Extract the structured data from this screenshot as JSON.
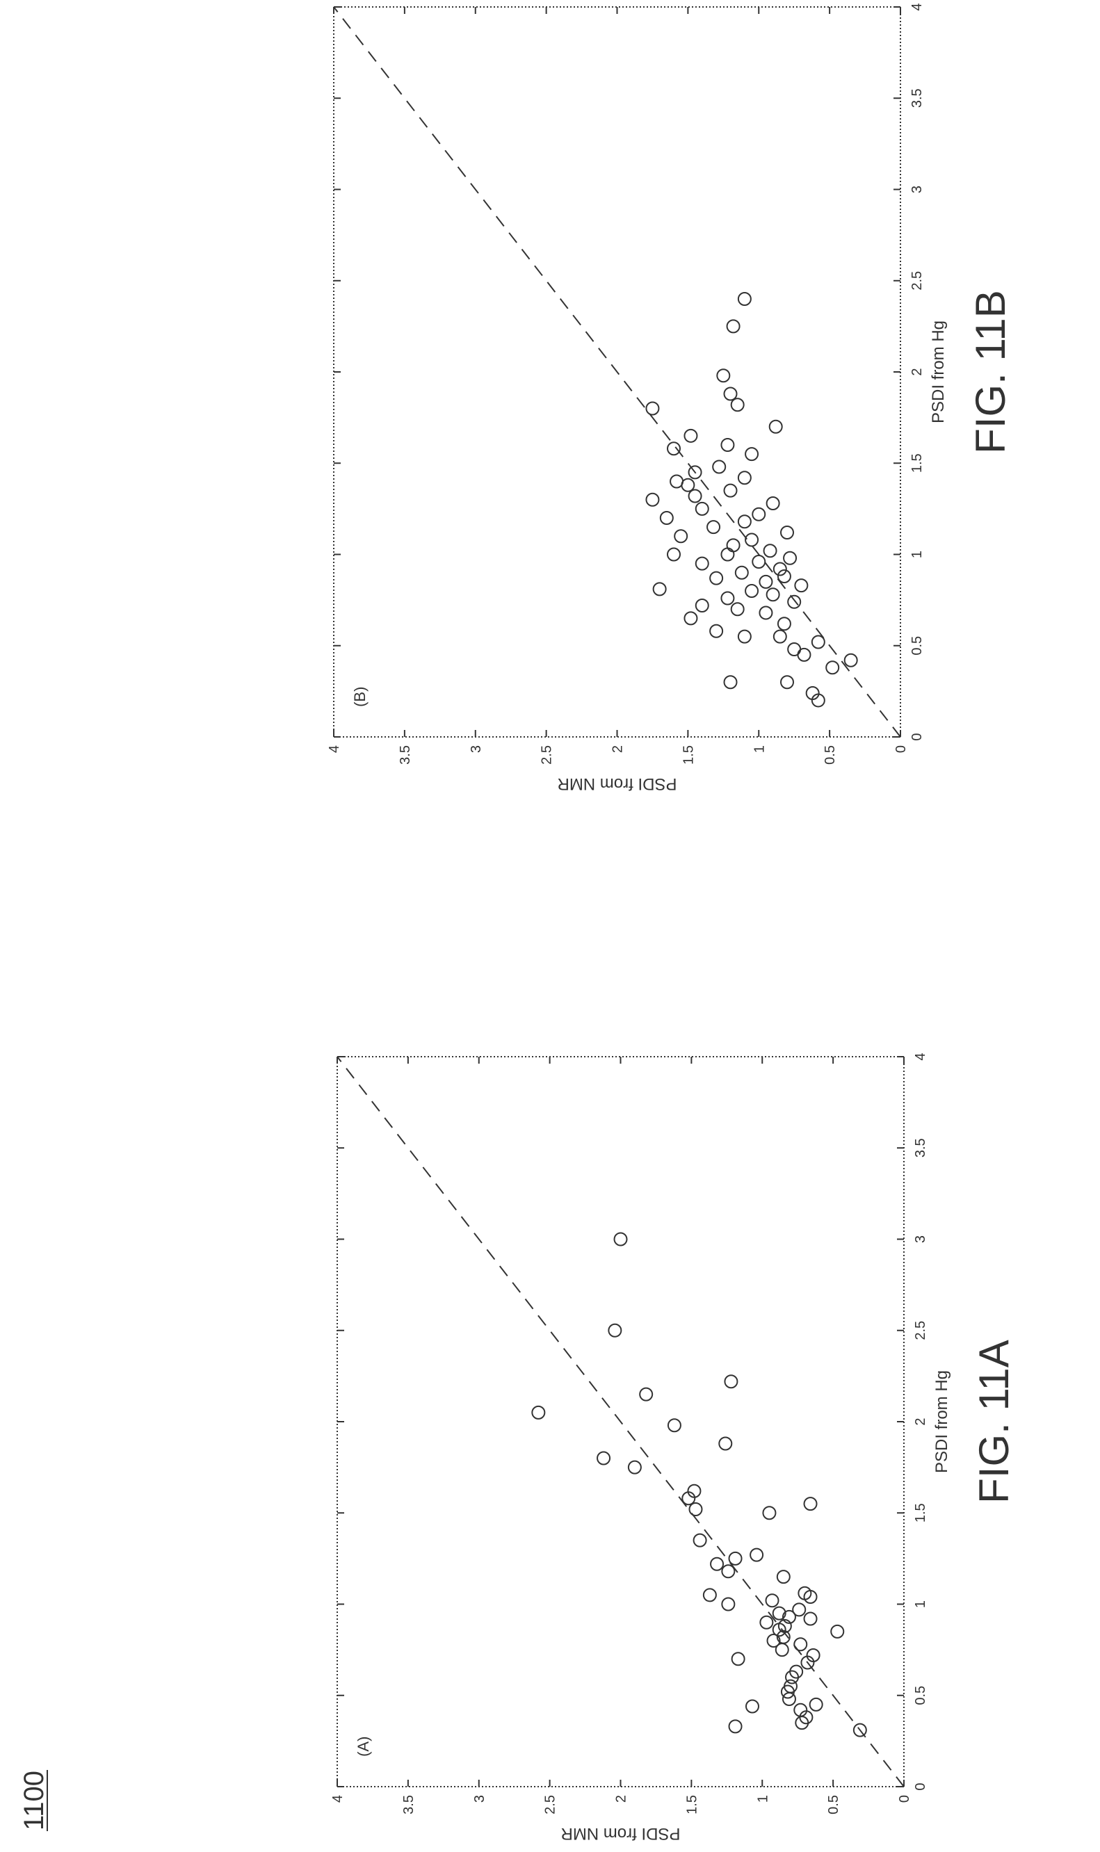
{
  "figure_number": "1100",
  "colors": {
    "ink": "#333333",
    "background": "#ffffff"
  },
  "chart_data": [
    {
      "type": "scatter",
      "panel_label": "(A)",
      "caption": "FIG. 11A",
      "xlabel": "PSDI from Hg",
      "ylabel": "PSDI from NMR",
      "xlim": [
        0,
        4
      ],
      "ylim": [
        0,
        4
      ],
      "xticks": [
        "0",
        "0.5",
        "1",
        "1.5",
        "2",
        "2.5",
        "3",
        "3.5",
        "4"
      ],
      "yticks": [
        "0",
        "0.5",
        "1",
        "1.5",
        "2",
        "2.5",
        "3",
        "3.5",
        "4"
      ],
      "grid": false,
      "marker": "open-circle",
      "reference_line": {
        "style": "dashed",
        "from": [
          0,
          0
        ],
        "to": [
          4,
          4
        ]
      },
      "points": [
        [
          0.31,
          0.31
        ],
        [
          0.33,
          1.19
        ],
        [
          0.35,
          0.72
        ],
        [
          0.38,
          0.69
        ],
        [
          0.42,
          0.73
        ],
        [
          0.45,
          0.62
        ],
        [
          0.44,
          1.07
        ],
        [
          0.48,
          0.81
        ],
        [
          0.52,
          0.82
        ],
        [
          0.55,
          0.8
        ],
        [
          0.6,
          0.79
        ],
        [
          0.63,
          0.76
        ],
        [
          0.68,
          0.68
        ],
        [
          0.7,
          1.17
        ],
        [
          0.72,
          0.64
        ],
        [
          0.75,
          0.86
        ],
        [
          0.78,
          0.73
        ],
        [
          0.8,
          0.92
        ],
        [
          0.82,
          0.85
        ],
        [
          0.85,
          0.47
        ],
        [
          0.86,
          0.88
        ],
        [
          0.88,
          0.84
        ],
        [
          0.9,
          0.97
        ],
        [
          0.92,
          0.66
        ],
        [
          0.93,
          0.81
        ],
        [
          0.95,
          0.88
        ],
        [
          0.97,
          0.74
        ],
        [
          1.0,
          1.24
        ],
        [
          1.02,
          0.93
        ],
        [
          1.04,
          0.66
        ],
        [
          1.05,
          1.37
        ],
        [
          1.06,
          0.7
        ],
        [
          1.15,
          0.85
        ],
        [
          1.18,
          1.24
        ],
        [
          1.22,
          1.32
        ],
        [
          1.25,
          1.19
        ],
        [
          1.27,
          1.04
        ],
        [
          1.35,
          1.44
        ],
        [
          1.5,
          0.95
        ],
        [
          1.52,
          1.47
        ],
        [
          1.55,
          0.66
        ],
        [
          1.58,
          1.52
        ],
        [
          1.62,
          1.48
        ],
        [
          1.75,
          1.9
        ],
        [
          1.8,
          2.12
        ],
        [
          1.88,
          1.26
        ],
        [
          1.98,
          1.62
        ],
        [
          2.05,
          2.58
        ],
        [
          2.15,
          1.82
        ],
        [
          2.22,
          1.22
        ],
        [
          2.5,
          2.04
        ],
        [
          3.0,
          2.0
        ]
      ]
    },
    {
      "type": "scatter",
      "panel_label": "(B)",
      "caption": "FIG. 11B",
      "xlabel": "PSDI from Hg",
      "ylabel": "PSDI from NMR",
      "xlim": [
        0,
        4
      ],
      "ylim": [
        0,
        4
      ],
      "xticks": [
        "0",
        "0.5",
        "1",
        "1.5",
        "2",
        "2.5",
        "3",
        "3.5",
        "4"
      ],
      "yticks": [
        "0",
        "0.5",
        "1",
        "1.5",
        "2",
        "2.5",
        "3",
        "3.5",
        "4"
      ],
      "grid": false,
      "marker": "open-circle",
      "reference_line": {
        "style": "dashed",
        "from": [
          0,
          0
        ],
        "to": [
          4,
          4
        ]
      },
      "points": [
        [
          0.2,
          0.58
        ],
        [
          0.24,
          0.62
        ],
        [
          0.3,
          0.8
        ],
        [
          0.3,
          1.2
        ],
        [
          0.38,
          0.48
        ],
        [
          0.42,
          0.35
        ],
        [
          0.45,
          0.68
        ],
        [
          0.48,
          0.75
        ],
        [
          0.52,
          0.58
        ],
        [
          0.55,
          0.85
        ],
        [
          0.55,
          1.1
        ],
        [
          0.58,
          1.3
        ],
        [
          0.62,
          0.82
        ],
        [
          0.65,
          1.48
        ],
        [
          0.68,
          0.95
        ],
        [
          0.7,
          1.15
        ],
        [
          0.72,
          1.4
        ],
        [
          0.74,
          0.75
        ],
        [
          0.76,
          1.22
        ],
        [
          0.78,
          0.9
        ],
        [
          0.8,
          1.05
        ],
        [
          0.81,
          1.7
        ],
        [
          0.83,
          0.7
        ],
        [
          0.85,
          0.95
        ],
        [
          0.87,
          1.3
        ],
        [
          0.88,
          0.82
        ],
        [
          0.9,
          1.12
        ],
        [
          0.92,
          0.85
        ],
        [
          0.95,
          1.4
        ],
        [
          0.96,
          1.0
        ],
        [
          0.98,
          0.78
        ],
        [
          1.0,
          1.6
        ],
        [
          1.0,
          1.22
        ],
        [
          1.02,
          0.92
        ],
        [
          1.05,
          1.18
        ],
        [
          1.08,
          1.05
        ],
        [
          1.1,
          1.55
        ],
        [
          1.12,
          0.8
        ],
        [
          1.15,
          1.32
        ],
        [
          1.18,
          1.1
        ],
        [
          1.2,
          1.65
        ],
        [
          1.22,
          1.0
        ],
        [
          1.25,
          1.4
        ],
        [
          1.28,
          0.9
        ],
        [
          1.3,
          1.75
        ],
        [
          1.32,
          1.45
        ],
        [
          1.35,
          1.2
        ],
        [
          1.38,
          1.5
        ],
        [
          1.4,
          1.58
        ],
        [
          1.42,
          1.1
        ],
        [
          1.45,
          1.45
        ],
        [
          1.48,
          1.28
        ],
        [
          1.55,
          1.05
        ],
        [
          1.58,
          1.6
        ],
        [
          1.6,
          1.22
        ],
        [
          1.65,
          1.48
        ],
        [
          1.7,
          0.88
        ],
        [
          1.8,
          1.75
        ],
        [
          1.82,
          1.15
        ],
        [
          1.88,
          1.2
        ],
        [
          1.98,
          1.25
        ],
        [
          2.25,
          1.18
        ],
        [
          2.4,
          1.1
        ]
      ]
    }
  ]
}
